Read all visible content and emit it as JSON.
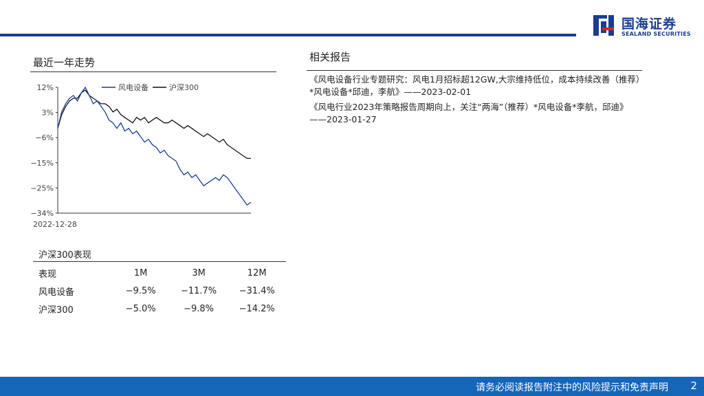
{
  "header": {
    "logo_cn": "国海证券",
    "logo_en": "SEALAND SECURITIES"
  },
  "trend": {
    "title": "最近一年走势"
  },
  "chart_data": {
    "type": "line",
    "y_ticks": [
      "12%",
      "3%",
      "-6%",
      "-15%",
      "-25%",
      "-34%"
    ],
    "ylim": [
      -34,
      12
    ],
    "x_tick_label": "2022-12-28",
    "series": [
      {
        "name": "风电设备",
        "color": "#1a3d8f",
        "values": [
          -3,
          3,
          6,
          8,
          9,
          7,
          10,
          12,
          9,
          6,
          7,
          5,
          3,
          0,
          -1,
          -3,
          -1,
          -4,
          -3,
          -5,
          -4,
          -6,
          -8,
          -7,
          -9,
          -10,
          -12,
          -11,
          -13,
          -14,
          -15,
          -18,
          -20,
          -19,
          -21,
          -20,
          -22,
          -24,
          -23,
          -22,
          -21,
          -22,
          -20,
          -21,
          -23,
          -25,
          -27,
          -29,
          -31,
          -30
        ]
      },
      {
        "name": "沪深300",
        "color": "#111111",
        "values": [
          -3,
          2,
          5,
          7,
          8,
          8,
          10,
          11,
          9,
          8,
          7,
          6,
          6,
          5,
          3,
          4,
          2,
          1,
          0,
          -1,
          1,
          0,
          1,
          -1,
          0,
          1,
          0,
          -1,
          -1,
          0,
          -1,
          -2,
          -3,
          -2,
          -3,
          -4,
          -5,
          -6,
          -5,
          -6,
          -7,
          -8,
          -7,
          -9,
          -10,
          -11,
          -12,
          -13,
          -14,
          -14
        ]
      }
    ]
  },
  "performance": {
    "title": "沪深300表现",
    "columns": [
      "表现",
      "1M",
      "3M",
      "12M"
    ],
    "rows": [
      [
        "风电设备",
        "−9.5%",
        "−11.7%",
        "−31.4%"
      ],
      [
        "沪深300",
        "−5.0%",
        "−9.8%",
        "−14.2%"
      ]
    ]
  },
  "reports": {
    "title": "相关报告",
    "items": [
      "《风电设备行业专题研究：风电1月招标超12GW,大宗维持低位，成本持续改善（推荐）*风电设备*邱迪，李航》——2023-02-01",
      "《风电行业2023年策略报告周期向上，关注“两海”（推荐）*风电设备*李航，邱迪》——2023-01-27"
    ]
  },
  "footer": {
    "disclaimer": "请务必阅读报告附注中的风险提示和免责声明",
    "page": "2"
  }
}
